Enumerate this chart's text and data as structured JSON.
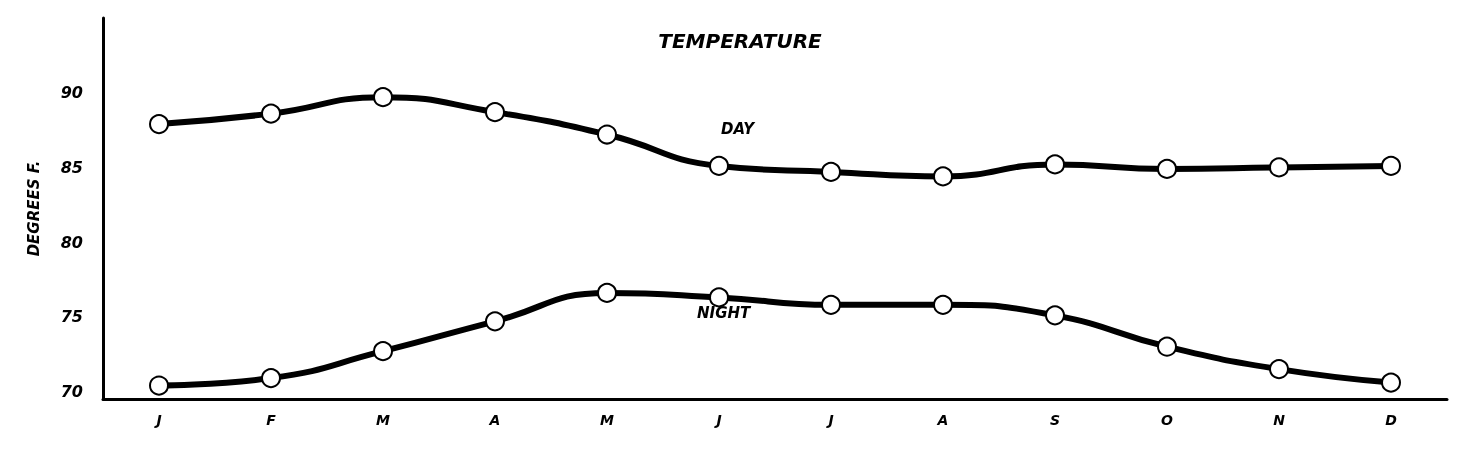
{
  "chart_data": {
    "type": "line",
    "title": "TEMPERATURE",
    "ylabel": "DEGREES F.",
    "categories": [
      "J",
      "F",
      "M",
      "A",
      "M",
      "J",
      "J",
      "A",
      "S",
      "O",
      "N",
      "D"
    ],
    "series": [
      {
        "name": "DAY",
        "color": "#000000",
        "values": [
          87.9,
          88.6,
          89.7,
          88.7,
          87.2,
          85.1,
          84.7,
          84.4,
          85.2,
          84.9,
          85.0,
          85.1
        ]
      },
      {
        "name": "NIGHT",
        "color": "#000000",
        "values": [
          70.4,
          70.9,
          72.7,
          74.7,
          76.6,
          76.3,
          75.8,
          75.8,
          75.1,
          73.0,
          71.5,
          70.6
        ]
      }
    ],
    "ylim": [
      69.5,
      95
    ],
    "yticks": [
      70,
      75,
      80,
      85,
      90
    ],
    "grid": false,
    "legend": false,
    "marker": "circle",
    "line_style": "solid"
  }
}
